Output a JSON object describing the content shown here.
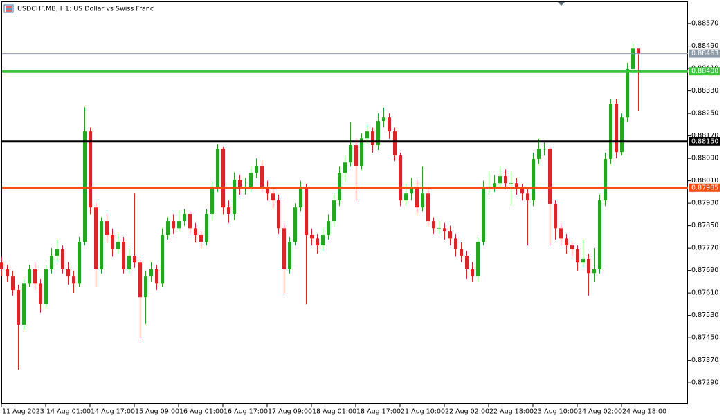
{
  "chart_data": {
    "type": "candlestick",
    "title": "USDCHF.MB, H1:  US Dollar vs Swiss Franc",
    "up_color": "#26a526",
    "down_color": "#d9262b",
    "open": [
      0.87718,
      0.87694,
      0.87669,
      0.8762,
      0.87497,
      0.87644,
      0.87694,
      0.87644,
      0.87571,
      0.87694,
      0.87743,
      0.87767,
      0.87694,
      0.87669,
      0.87644,
      0.87792,
      0.88186,
      0.87915,
      0.87694,
      0.87866,
      0.87817,
      0.87767,
      0.87792,
      0.87694,
      0.87743,
      0.87718,
      0.87595,
      0.87669,
      0.87694,
      0.87644,
      0.87817,
      0.87866,
      0.87841,
      0.87866,
      0.87891,
      0.87841,
      0.87817,
      0.87792,
      0.87891,
      0.87989,
      0.88124,
      0.87915,
      0.87891,
      0.88014,
      0.87989,
      0.87989,
      0.88038,
      0.88063,
      0.87989,
      0.87964,
      0.8794,
      0.87841,
      0.87694,
      0.87792,
      0.87915,
      0.87989,
      0.87817,
      0.87804,
      0.8778,
      0.87817,
      0.87866,
      0.8794,
      0.88038,
      0.88075,
      0.88137,
      0.88063,
      0.88161,
      0.88186,
      0.88137,
      0.88223,
      0.88235,
      0.88186,
      0.881,
      0.8794,
      0.87964,
      0.87989,
      0.87915,
      0.87964,
      0.87866,
      0.87841,
      0.87841,
      0.87829,
      0.87804,
      0.87767,
      0.87743,
      0.87694,
      0.87669,
      0.87792,
      0.87989,
      0.87989,
      0.88001,
      0.88026,
      0.88001,
      0.88001,
      0.87989,
      0.87964,
      0.8794,
      0.88088,
      0.88124,
      0.88124,
      0.87927,
      0.87841,
      0.87804,
      0.8778,
      0.87767,
      0.87718,
      0.87731,
      0.87681,
      0.87694,
      0.8794,
      0.88088,
      0.88284,
      0.88112,
      0.88235,
      0.88408,
      0.88481
    ],
    "high": [
      0.8774,
      0.8771,
      0.8769,
      0.8764,
      0.8766,
      0.8771,
      0.8772,
      0.8766,
      0.8771,
      0.8777,
      0.878,
      0.8778,
      0.8772,
      0.8769,
      0.8781,
      0.88272,
      0.882,
      0.8793,
      0.8788,
      0.8789,
      0.8784,
      0.8782,
      0.8781,
      0.8777,
      0.87964,
      0.8773,
      0.8769,
      0.8772,
      0.8771,
      0.8784,
      0.8788,
      0.8789,
      0.879,
      0.8791,
      0.879,
      0.8786,
      0.8783,
      0.8791,
      0.8801,
      0.8814,
      0.8813,
      0.8794,
      0.8804,
      0.8803,
      0.8802,
      0.8806,
      0.8809,
      0.8808,
      0.8801,
      0.8798,
      0.8796,
      0.8786,
      0.8781,
      0.8793,
      0.8801,
      0.88,
      0.8784,
      0.8782,
      0.8784,
      0.8789,
      0.8796,
      0.8806,
      0.881,
      0.8822,
      0.8816,
      0.8818,
      0.8821,
      0.882,
      0.8825,
      0.8827,
      0.8825,
      0.882,
      0.8811,
      0.88,
      0.8802,
      0.8801,
      0.8806,
      0.8798,
      0.8788,
      0.8787,
      0.8786,
      0.8785,
      0.8782,
      0.8779,
      0.8776,
      0.8772,
      0.8781,
      0.8801,
      0.8804,
      0.8803,
      0.8806,
      0.8805,
      0.8804,
      0.8802,
      0.88,
      0.8798,
      0.8811,
      0.8816,
      0.8815,
      0.8813,
      0.8794,
      0.8786,
      0.8782,
      0.8779,
      0.8778,
      0.878,
      0.8775,
      0.8777,
      0.8796,
      0.8811,
      0.883,
      0.883,
      0.8825,
      0.8843,
      0.885,
      0.8848
    ],
    "low": [
      0.8767,
      0.8765,
      0.876,
      0.87337,
      0.8748,
      0.8763,
      0.8762,
      0.8754,
      0.8756,
      0.8768,
      0.8772,
      0.8768,
      0.8764,
      0.8761,
      0.8763,
      0.8778,
      0.8789,
      0.8763,
      0.8768,
      0.8779,
      0.8774,
      0.8775,
      0.8768,
      0.8768,
      0.877,
      0.87448,
      0.875,
      0.8765,
      0.8762,
      0.8763,
      0.878,
      0.8782,
      0.8783,
      0.8785,
      0.8782,
      0.8779,
      0.8777,
      0.8778,
      0.8787,
      0.8797,
      0.8789,
      0.8786,
      0.8787,
      0.8796,
      0.8796,
      0.8797,
      0.8802,
      0.8797,
      0.8794,
      0.8791,
      0.8782,
      0.87608,
      0.8768,
      0.8778,
      0.879,
      0.8757,
      0.8778,
      0.8775,
      0.8776,
      0.878,
      0.8785,
      0.8792,
      0.8801,
      0.8806,
      0.8794,
      0.8805,
      0.8814,
      0.8811,
      0.8812,
      0.882,
      0.8816,
      0.8808,
      0.8792,
      0.8792,
      0.8794,
      0.8789,
      0.879,
      0.8785,
      0.8782,
      0.8782,
      0.878,
      0.8778,
      0.8774,
      0.8772,
      0.8766,
      0.8765,
      0.8765,
      0.8778,
      0.8796,
      0.8797,
      0.8799,
      0.8798,
      0.8792,
      0.8796,
      0.8794,
      0.8778,
      0.8792,
      0.8807,
      0.881,
      0.8778,
      0.878,
      0.8778,
      0.8775,
      0.8774,
      0.8769,
      0.877,
      0.876,
      0.8765,
      0.8768,
      0.8792,
      0.8807,
      0.8809,
      0.881,
      0.8822,
      0.8839,
      0.8826
    ],
    "close": [
      0.87694,
      0.87669,
      0.8762,
      0.87497,
      0.87644,
      0.87694,
      0.87644,
      0.87571,
      0.87694,
      0.87743,
      0.87767,
      0.87694,
      0.87669,
      0.87644,
      0.87792,
      0.88186,
      0.87915,
      0.87694,
      0.87866,
      0.87817,
      0.87767,
      0.87792,
      0.87694,
      0.87743,
      0.87718,
      0.87595,
      0.87669,
      0.87694,
      0.87644,
      0.87817,
      0.87866,
      0.87841,
      0.87866,
      0.87891,
      0.87841,
      0.87817,
      0.87792,
      0.87891,
      0.87989,
      0.88124,
      0.87915,
      0.87891,
      0.88014,
      0.87989,
      0.87989,
      0.88038,
      0.88063,
      0.87989,
      0.87964,
      0.8794,
      0.87841,
      0.87694,
      0.87792,
      0.87915,
      0.87989,
      0.87817,
      0.87804,
      0.8778,
      0.87817,
      0.87866,
      0.8794,
      0.88038,
      0.88075,
      0.88137,
      0.88063,
      0.88161,
      0.88186,
      0.88137,
      0.88223,
      0.88235,
      0.88186,
      0.881,
      0.8794,
      0.87964,
      0.87989,
      0.87915,
      0.87964,
      0.87866,
      0.87841,
      0.87841,
      0.87829,
      0.87804,
      0.87767,
      0.87743,
      0.87694,
      0.87669,
      0.87792,
      0.87989,
      0.87989,
      0.88001,
      0.88026,
      0.88001,
      0.88001,
      0.87989,
      0.87964,
      0.8794,
      0.88088,
      0.88124,
      0.88124,
      0.87927,
      0.87841,
      0.87804,
      0.8778,
      0.87767,
      0.87718,
      0.87731,
      0.87681,
      0.87694,
      0.8794,
      0.88088,
      0.88284,
      0.88112,
      0.88235,
      0.88408,
      0.88481,
      0.88463
    ],
    "ylim": [
      0.87214,
      0.88654
    ],
    "yticks": [
      {
        "value": 0.8857,
        "label": "0.88570"
      },
      {
        "value": 0.8849,
        "label": "0.88490"
      },
      {
        "value": 0.8841,
        "label": "0.88410"
      },
      {
        "value": 0.8833,
        "label": "0.88330"
      },
      {
        "value": 0.8825,
        "label": "0.88250"
      },
      {
        "value": 0.8817,
        "label": "0.88170"
      },
      {
        "value": 0.8809,
        "label": "0.88090"
      },
      {
        "value": 0.8801,
        "label": "0.88010"
      },
      {
        "value": 0.8793,
        "label": "0.87930"
      },
      {
        "value": 0.8785,
        "label": "0.87850"
      },
      {
        "value": 0.8777,
        "label": "0.87770"
      },
      {
        "value": 0.8769,
        "label": "0.87690"
      },
      {
        "value": 0.8761,
        "label": "0.87610"
      },
      {
        "value": 0.8753,
        "label": "0.87530"
      },
      {
        "value": 0.8745,
        "label": "0.87450"
      },
      {
        "value": 0.8737,
        "label": "0.87370"
      },
      {
        "value": 0.8729,
        "label": "0.87290"
      }
    ],
    "xticks": [
      {
        "value": 0,
        "label": "11 Aug 2023"
      },
      {
        "value": 8,
        "label": "14 Aug 01:00"
      },
      {
        "value": 16,
        "label": "14 Aug 17:00"
      },
      {
        "value": 24,
        "label": "15 Aug 09:00"
      },
      {
        "value": 32,
        "label": "16 Aug 01:00"
      },
      {
        "value": 40,
        "label": "16 Aug 17:00"
      },
      {
        "value": 48,
        "label": "17 Aug 09:00"
      },
      {
        "value": 56,
        "label": "18 Aug 01:00"
      },
      {
        "value": 64,
        "label": "18 Aug 17:00"
      },
      {
        "value": 72,
        "label": "21 Aug 10:00"
      },
      {
        "value": 80,
        "label": "22 Aug 02:00"
      },
      {
        "value": 88,
        "label": "22 Aug 18:00"
      },
      {
        "value": 96,
        "label": "23 Aug 10:00"
      },
      {
        "value": 104,
        "label": "24 Aug 02:00"
      },
      {
        "value": 112,
        "label": "24 Aug 18:00"
      }
    ],
    "levels": [
      {
        "value": 0.88463,
        "label": "0.88463",
        "color": "#8c9aa8"
      },
      {
        "value": 0.884,
        "label": "0.88400",
        "color": "#3cc43c"
      },
      {
        "value": 0.8815,
        "label": "0.88150",
        "color": "#000000"
      },
      {
        "value": 0.87985,
        "label": "0.87985",
        "color": "#ff4a12"
      }
    ],
    "grid": false
  }
}
